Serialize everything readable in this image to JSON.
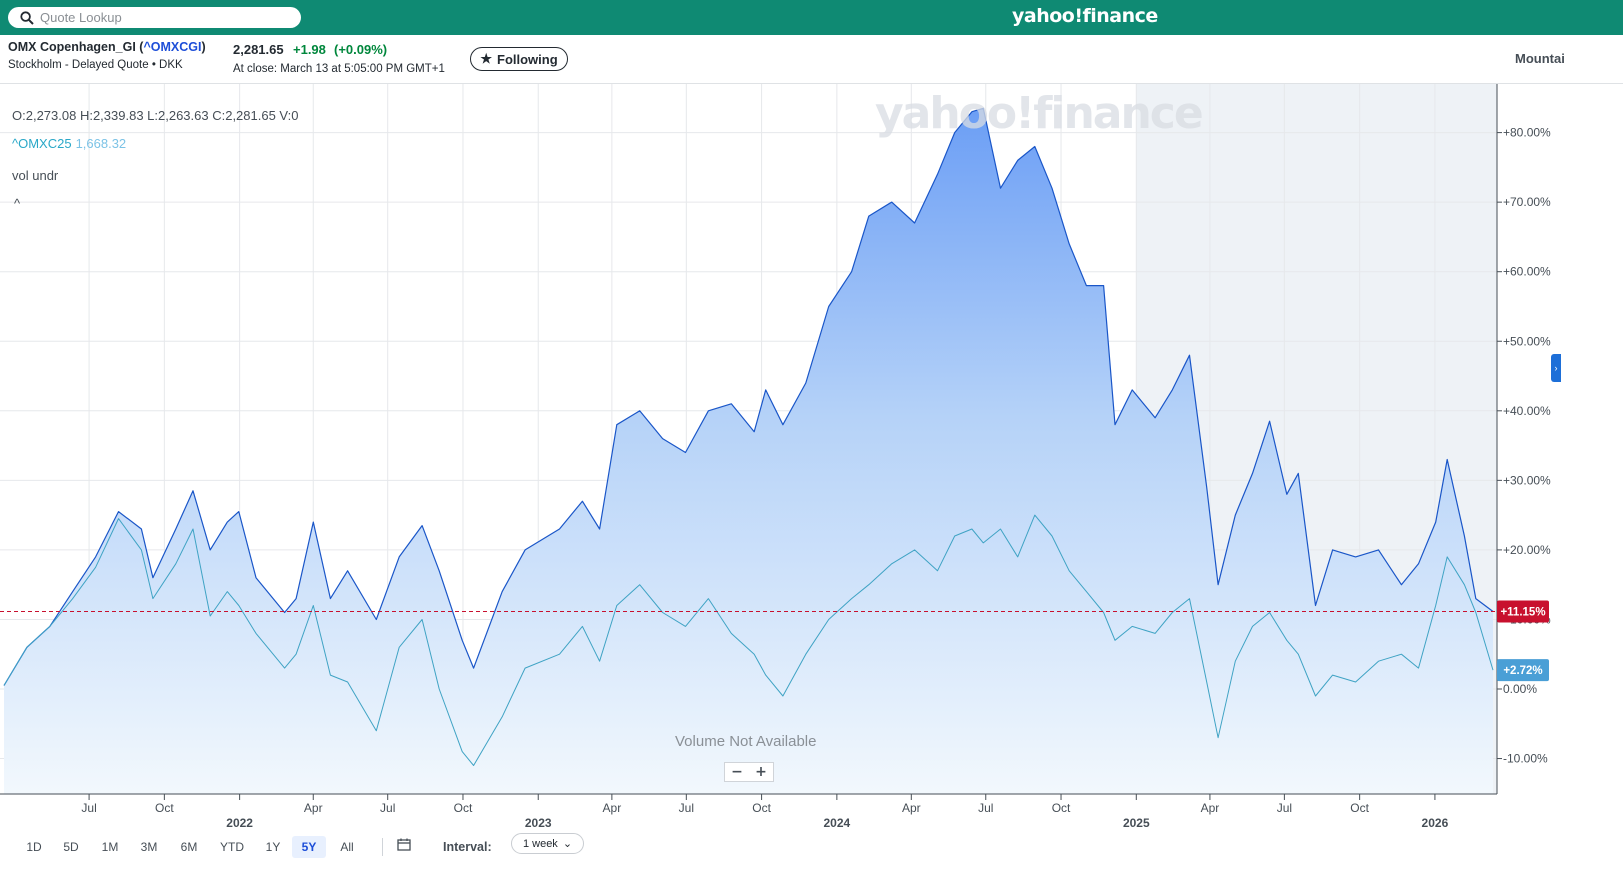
{
  "header": {
    "search_placeholder": "Quote Lookup",
    "brand": "yahoo!finance"
  },
  "quote": {
    "name_prefix": "OMX Copenhagen_GI (",
    "symbol": "^OMXCGI",
    "name_suffix": ")",
    "exchange": "Stockholm - Delayed Quote • DKK",
    "price": "2,281.65",
    "change": "+1.98",
    "change_pct": "(+0.09%)",
    "close_time": "At close: March 13 at 5:05:00 PM GMT+1",
    "follow_label": "Following",
    "chart_type_label": "Mountai"
  },
  "chart": {
    "ohlc": "O:2,273.08   H:2,339.83   L:2,263.63   C:2,281.65   V:0",
    "compare_symbol": "^OMXC25",
    "compare_value": "1,668.32",
    "indicator_label": "vol undr",
    "collapse_glyph": "^",
    "watermark": "yahoo!finance",
    "volume_note": "Volume Not Available",
    "zoom_out": "−",
    "zoom_in": "+",
    "side_tab_glyph": "›"
  },
  "chart_data": {
    "type": "area",
    "x_unit": "week",
    "x_start": "2021-03-19",
    "x_end": "2026-03-13",
    "ylim": [
      -15,
      88
    ],
    "y_unit": "%",
    "y_ticks": [
      -10,
      0,
      10,
      20,
      30,
      40,
      50,
      60,
      70,
      80
    ],
    "y_tick_labels": [
      "-10.00%",
      "0.00%",
      "+10.00%",
      "+20.00%",
      "+30.00%",
      "+40.00%",
      "+50.00%",
      "+60.00%",
      "+70.00%",
      "+80.00%"
    ],
    "month_ticks": [
      {
        "date": "2021-07-01",
        "label": "Jul"
      },
      {
        "date": "2021-10-01",
        "label": "Oct"
      },
      {
        "date": "2022-01-01",
        "label": "",
        "year": "2022"
      },
      {
        "date": "2022-04-01",
        "label": "Apr"
      },
      {
        "date": "2022-07-01",
        "label": "Jul"
      },
      {
        "date": "2022-10-01",
        "label": "Oct"
      },
      {
        "date": "2023-01-01",
        "label": "",
        "year": "2023"
      },
      {
        "date": "2023-04-01",
        "label": "Apr"
      },
      {
        "date": "2023-07-01",
        "label": "Jul"
      },
      {
        "date": "2023-10-01",
        "label": "Oct"
      },
      {
        "date": "2024-01-01",
        "label": "",
        "year": "2024"
      },
      {
        "date": "2024-04-01",
        "label": "Apr"
      },
      {
        "date": "2024-07-01",
        "label": "Jul"
      },
      {
        "date": "2024-10-01",
        "label": "Oct"
      },
      {
        "date": "2025-01-01",
        "label": "",
        "year": "2025"
      },
      {
        "date": "2025-04-01",
        "label": "Apr"
      },
      {
        "date": "2025-07-01",
        "label": "Jul"
      },
      {
        "date": "2025-10-01",
        "label": "Oct"
      },
      {
        "date": "2026-01-01",
        "label": "",
        "year": "2026"
      }
    ],
    "shaded_from": "2025-01-01",
    "series": [
      {
        "name": "^OMXCGI",
        "color": "#1a56c8",
        "fill": true,
        "last_label": "+11.15%",
        "last_label_color": "#c8102e",
        "points": [
          [
            "2021-03-19",
            0.5
          ],
          [
            "2021-04-16",
            6
          ],
          [
            "2021-05-14",
            9
          ],
          [
            "2021-06-11",
            14
          ],
          [
            "2021-07-09",
            19
          ],
          [
            "2021-08-06",
            25.5
          ],
          [
            "2021-09-03",
            23
          ],
          [
            "2021-09-17",
            16
          ],
          [
            "2021-10-15",
            23
          ],
          [
            "2021-11-05",
            28.5
          ],
          [
            "2021-11-26",
            20
          ],
          [
            "2021-12-17",
            24
          ],
          [
            "2021-12-31",
            25.5
          ],
          [
            "2022-01-21",
            16
          ],
          [
            "2022-02-25",
            11
          ],
          [
            "2022-03-11",
            13
          ],
          [
            "2022-04-01",
            24
          ],
          [
            "2022-04-22",
            13
          ],
          [
            "2022-05-13",
            17
          ],
          [
            "2022-06-17",
            10
          ],
          [
            "2022-07-15",
            19
          ],
          [
            "2022-08-12",
            23.5
          ],
          [
            "2022-09-02",
            17
          ],
          [
            "2022-09-30",
            7
          ],
          [
            "2022-10-14",
            3
          ],
          [
            "2022-11-18",
            14
          ],
          [
            "2022-12-16",
            20
          ],
          [
            "2023-01-27",
            23
          ],
          [
            "2023-02-24",
            27
          ],
          [
            "2023-03-17",
            23
          ],
          [
            "2023-04-07",
            38
          ],
          [
            "2023-05-05",
            40
          ],
          [
            "2023-06-02",
            36
          ],
          [
            "2023-06-30",
            34
          ],
          [
            "2023-07-28",
            40
          ],
          [
            "2023-08-25",
            41
          ],
          [
            "2023-09-22",
            37
          ],
          [
            "2023-10-06",
            43
          ],
          [
            "2023-10-27",
            38
          ],
          [
            "2023-11-24",
            44
          ],
          [
            "2023-12-22",
            55
          ],
          [
            "2024-01-19",
            60
          ],
          [
            "2024-02-09",
            68
          ],
          [
            "2024-03-08",
            70
          ],
          [
            "2024-04-05",
            67
          ],
          [
            "2024-05-03",
            74
          ],
          [
            "2024-05-24",
            80
          ],
          [
            "2024-06-14",
            83
          ],
          [
            "2024-06-28",
            83.5
          ],
          [
            "2024-07-19",
            72
          ],
          [
            "2024-08-09",
            76
          ],
          [
            "2024-08-30",
            78
          ],
          [
            "2024-09-20",
            72
          ],
          [
            "2024-10-11",
            64
          ],
          [
            "2024-11-01",
            58
          ],
          [
            "2024-11-22",
            58
          ],
          [
            "2024-12-06",
            38
          ],
          [
            "2024-12-27",
            43
          ],
          [
            "2025-01-24",
            39
          ],
          [
            "2025-02-14",
            43
          ],
          [
            "2025-03-07",
            48
          ],
          [
            "2025-03-28",
            29
          ],
          [
            "2025-04-11",
            15
          ],
          [
            "2025-05-02",
            25
          ],
          [
            "2025-05-23",
            31
          ],
          [
            "2025-06-13",
            38.5
          ],
          [
            "2025-07-04",
            28
          ],
          [
            "2025-07-18",
            31
          ],
          [
            "2025-08-08",
            12
          ],
          [
            "2025-08-29",
            20
          ],
          [
            "2025-09-26",
            19
          ],
          [
            "2025-10-24",
            20
          ],
          [
            "2025-11-21",
            15
          ],
          [
            "2025-12-12",
            18
          ],
          [
            "2026-01-02",
            24
          ],
          [
            "2026-01-16",
            33
          ],
          [
            "2026-02-06",
            22
          ],
          [
            "2026-02-20",
            13
          ],
          [
            "2026-03-13",
            11.15
          ]
        ]
      },
      {
        "name": "^OMXC25",
        "color": "#3fa3c4",
        "fill": false,
        "last_label": "+2.72%",
        "last_label_color": "#4a9fd6",
        "points": [
          [
            "2021-03-19",
            0.5
          ],
          [
            "2021-04-16",
            6
          ],
          [
            "2021-05-14",
            9
          ],
          [
            "2021-06-11",
            13
          ],
          [
            "2021-07-09",
            17.5
          ],
          [
            "2021-08-06",
            24.5
          ],
          [
            "2021-09-03",
            20
          ],
          [
            "2021-09-17",
            13
          ],
          [
            "2021-10-15",
            18
          ],
          [
            "2021-11-05",
            23
          ],
          [
            "2021-11-26",
            10.5
          ],
          [
            "2021-12-17",
            14
          ],
          [
            "2021-12-31",
            12
          ],
          [
            "2022-01-21",
            8
          ],
          [
            "2022-02-25",
            3
          ],
          [
            "2022-03-11",
            5
          ],
          [
            "2022-04-01",
            12
          ],
          [
            "2022-04-22",
            2
          ],
          [
            "2022-05-13",
            1
          ],
          [
            "2022-06-17",
            -6
          ],
          [
            "2022-07-15",
            6
          ],
          [
            "2022-08-12",
            10
          ],
          [
            "2022-09-02",
            0
          ],
          [
            "2022-09-30",
            -9
          ],
          [
            "2022-10-14",
            -11
          ],
          [
            "2022-11-18",
            -4
          ],
          [
            "2022-12-16",
            3
          ],
          [
            "2023-01-27",
            5
          ],
          [
            "2023-02-24",
            9
          ],
          [
            "2023-03-17",
            4
          ],
          [
            "2023-04-07",
            12
          ],
          [
            "2023-05-05",
            15
          ],
          [
            "2023-06-02",
            11
          ],
          [
            "2023-06-30",
            9
          ],
          [
            "2023-07-28",
            13
          ],
          [
            "2023-08-25",
            8
          ],
          [
            "2023-09-22",
            5
          ],
          [
            "2023-10-06",
            2
          ],
          [
            "2023-10-27",
            -1
          ],
          [
            "2023-11-24",
            5
          ],
          [
            "2023-12-22",
            10
          ],
          [
            "2024-01-19",
            13
          ],
          [
            "2024-02-09",
            15
          ],
          [
            "2024-03-08",
            18
          ],
          [
            "2024-04-05",
            20
          ],
          [
            "2024-05-03",
            17
          ],
          [
            "2024-05-24",
            22
          ],
          [
            "2024-06-14",
            23
          ],
          [
            "2024-06-28",
            21
          ],
          [
            "2024-07-19",
            23
          ],
          [
            "2024-08-09",
            19
          ],
          [
            "2024-08-30",
            25
          ],
          [
            "2024-09-20",
            22
          ],
          [
            "2024-10-11",
            17
          ],
          [
            "2024-11-01",
            14
          ],
          [
            "2024-11-22",
            11
          ],
          [
            "2024-12-06",
            7
          ],
          [
            "2024-12-27",
            9
          ],
          [
            "2025-01-24",
            8
          ],
          [
            "2025-02-14",
            11
          ],
          [
            "2025-03-07",
            13
          ],
          [
            "2025-03-28",
            1
          ],
          [
            "2025-04-11",
            -7
          ],
          [
            "2025-05-02",
            4
          ],
          [
            "2025-05-23",
            9
          ],
          [
            "2025-06-13",
            11
          ],
          [
            "2025-07-04",
            7
          ],
          [
            "2025-07-18",
            5
          ],
          [
            "2025-08-08",
            -1
          ],
          [
            "2025-08-29",
            2
          ],
          [
            "2025-09-26",
            1
          ],
          [
            "2025-10-24",
            4
          ],
          [
            "2025-11-21",
            5
          ],
          [
            "2025-12-12",
            3
          ],
          [
            "2026-01-02",
            12
          ],
          [
            "2026-01-16",
            19
          ],
          [
            "2026-02-06",
            15
          ],
          [
            "2026-02-20",
            11
          ],
          [
            "2026-03-13",
            2.72
          ]
        ]
      }
    ],
    "baseline": 11.15
  },
  "periods": {
    "items": [
      "1D",
      "5D",
      "1M",
      "3M",
      "6M",
      "YTD",
      "1Y",
      "5Y",
      "All"
    ],
    "active": "5Y",
    "calendar_glyph": "📅",
    "interval_label": "Interval:",
    "interval_value": "1 week"
  },
  "colors": {
    "brand_bar": "#0f8a73",
    "positive": "#00873c",
    "link": "#1d4ed8"
  }
}
